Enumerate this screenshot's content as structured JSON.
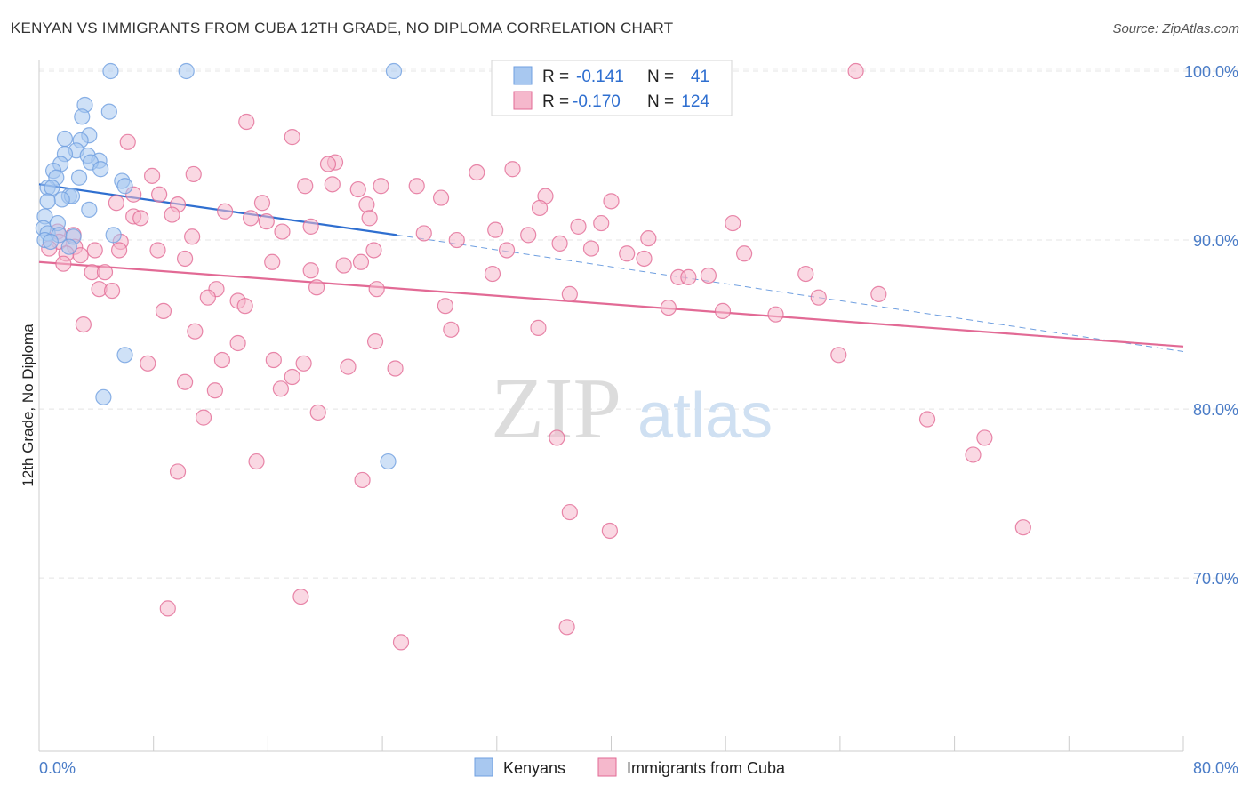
{
  "header": {
    "title": "KENYAN VS IMMIGRANTS FROM CUBA 12TH GRADE, NO DIPLOMA CORRELATION CHART",
    "source": "Source: ZipAtlas.com"
  },
  "watermark": {
    "zip": "ZIP",
    "atlas": "atlas"
  },
  "legend_top": [
    {
      "r_label": "R =",
      "r_value": "-0.141",
      "n_label": "N =",
      "n_value": "41",
      "color": "#a8c8f0"
    },
    {
      "r_label": "R =",
      "r_value": "-0.170",
      "n_label": "N =",
      "n_value": "124",
      "color": "#f5b8cc"
    }
  ],
  "legend_bottom": [
    {
      "label": "Kenyans",
      "color": "#a8c8f0"
    },
    {
      "label": "Immigrants from Cuba",
      "color": "#f5b8cc"
    }
  ],
  "chart_data": {
    "type": "scatter",
    "xlabel": "",
    "ylabel": "12th Grade, No Diploma",
    "xlim": [
      0,
      80
    ],
    "ylim": [
      60,
      103
    ],
    "x_tick_labels": [
      {
        "value": 0,
        "label": "0.0%"
      },
      {
        "value": 80,
        "label": "80.0%"
      }
    ],
    "y_tick_labels": [
      {
        "value": 100,
        "label": "100.0%"
      },
      {
        "value": 90,
        "label": "90.0%"
      },
      {
        "value": 80,
        "label": "80.0%"
      },
      {
        "value": 70,
        "label": "70.0%"
      }
    ],
    "grid": true,
    "legend_position": "top-center",
    "series": [
      {
        "name": "Kenyans",
        "color": "#6f9fe0",
        "fill": "#a8c8f0",
        "trend": {
          "x0": 0,
          "y0": 93.3,
          "x1": 25,
          "y1": 90.3,
          "dash_x1": 80,
          "dash_y1": 83.4
        },
        "points": [
          [
            5,
            100
          ],
          [
            10.3,
            100
          ],
          [
            24.8,
            100
          ],
          [
            3.2,
            98
          ],
          [
            4.9,
            97.6
          ],
          [
            3,
            97.3
          ],
          [
            3.5,
            96.2
          ],
          [
            1.8,
            96
          ],
          [
            2.9,
            95.9
          ],
          [
            2.6,
            95.3
          ],
          [
            1.8,
            95.1
          ],
          [
            3.4,
            95
          ],
          [
            4.2,
            94.7
          ],
          [
            3.6,
            94.6
          ],
          [
            1.5,
            94.5
          ],
          [
            1,
            94.1
          ],
          [
            4.3,
            94.2
          ],
          [
            2.8,
            93.7
          ],
          [
            1.2,
            93.7
          ],
          [
            5.8,
            93.5
          ],
          [
            0.6,
            93.1
          ],
          [
            0.9,
            93.1
          ],
          [
            6,
            93.2
          ],
          [
            2.1,
            92.6
          ],
          [
            2.3,
            92.6
          ],
          [
            1.6,
            92.4
          ],
          [
            0.6,
            92.3
          ],
          [
            3.5,
            91.8
          ],
          [
            0.4,
            91.4
          ],
          [
            1.3,
            91
          ],
          [
            0.3,
            90.7
          ],
          [
            0.6,
            90.4
          ],
          [
            1.4,
            90.3
          ],
          [
            2.4,
            90.2
          ],
          [
            0.4,
            90
          ],
          [
            0.8,
            89.9
          ],
          [
            5.2,
            90.3
          ],
          [
            2.1,
            89.6
          ],
          [
            6,
            83.2
          ],
          [
            4.5,
            80.7
          ],
          [
            24.4,
            76.9
          ]
        ]
      },
      {
        "name": "Immigrants from Cuba",
        "color": "#e26a95",
        "fill": "#f5b8cc",
        "trend": {
          "x0": 0,
          "y0": 88.7,
          "x1": 80,
          "y1": 83.7
        },
        "points": [
          [
            57.1,
            100
          ],
          [
            14.5,
            97
          ],
          [
            17.7,
            96.1
          ],
          [
            6.2,
            95.8
          ],
          [
            20.7,
            94.6
          ],
          [
            20.2,
            94.5
          ],
          [
            33.1,
            94.2
          ],
          [
            30.6,
            94
          ],
          [
            7.9,
            93.8
          ],
          [
            10.8,
            93.9
          ],
          [
            18.6,
            93.2
          ],
          [
            20.5,
            93.3
          ],
          [
            22.3,
            93
          ],
          [
            23.9,
            93.2
          ],
          [
            26.4,
            93.2
          ],
          [
            6.6,
            92.7
          ],
          [
            8.4,
            92.7
          ],
          [
            28.1,
            92.5
          ],
          [
            35.4,
            92.6
          ],
          [
            40,
            92.3
          ],
          [
            5.4,
            92.2
          ],
          [
            9.7,
            92.1
          ],
          [
            15.6,
            92.2
          ],
          [
            22.9,
            92.1
          ],
          [
            35,
            91.9
          ],
          [
            6.6,
            91.4
          ],
          [
            7.1,
            91.3
          ],
          [
            9.3,
            91.5
          ],
          [
            13,
            91.7
          ],
          [
            14.8,
            91.3
          ],
          [
            15.9,
            91.1
          ],
          [
            23.1,
            91.3
          ],
          [
            39.3,
            91
          ],
          [
            48.5,
            91
          ],
          [
            37.7,
            90.8
          ],
          [
            19,
            90.8
          ],
          [
            31.9,
            90.6
          ],
          [
            1.3,
            90.5
          ],
          [
            2.4,
            90.3
          ],
          [
            10.7,
            90.2
          ],
          [
            17,
            90.5
          ],
          [
            34.2,
            90.3
          ],
          [
            26.9,
            90.4
          ],
          [
            1.4,
            89.9
          ],
          [
            42.6,
            90.1
          ],
          [
            29.2,
            90
          ],
          [
            36.4,
            89.8
          ],
          [
            5.7,
            89.9
          ],
          [
            8.3,
            89.4
          ],
          [
            23.4,
            89.4
          ],
          [
            32.7,
            89.4
          ],
          [
            38.6,
            89.5
          ],
          [
            0.7,
            89.5
          ],
          [
            2.5,
            89.6
          ],
          [
            3.9,
            89.4
          ],
          [
            5.6,
            89.4
          ],
          [
            1.9,
            89.2
          ],
          [
            2.9,
            89.1
          ],
          [
            41.1,
            89.2
          ],
          [
            42.3,
            88.9
          ],
          [
            49.3,
            89.2
          ],
          [
            10.2,
            88.9
          ],
          [
            16.3,
            88.7
          ],
          [
            22.5,
            88.7
          ],
          [
            1.7,
            88.6
          ],
          [
            3.7,
            88.1
          ],
          [
            19,
            88.2
          ],
          [
            21.3,
            88.5
          ],
          [
            31.7,
            88
          ],
          [
            44.7,
            87.8
          ],
          [
            45.4,
            87.8
          ],
          [
            46.8,
            87.9
          ],
          [
            53.6,
            88
          ],
          [
            4.6,
            88.1
          ],
          [
            4.2,
            87.1
          ],
          [
            5.1,
            87
          ],
          [
            12.4,
            87.1
          ],
          [
            19.4,
            87.2
          ],
          [
            23.6,
            87.1
          ],
          [
            37.1,
            86.8
          ],
          [
            54.5,
            86.6
          ],
          [
            58.7,
            86.8
          ],
          [
            11.8,
            86.6
          ],
          [
            13.9,
            86.4
          ],
          [
            28.4,
            86.1
          ],
          [
            44,
            86
          ],
          [
            47.8,
            85.8
          ],
          [
            14.4,
            86.1
          ],
          [
            51.5,
            85.6
          ],
          [
            8.7,
            85.8
          ],
          [
            3.1,
            85
          ],
          [
            10.9,
            84.6
          ],
          [
            34.9,
            84.8
          ],
          [
            28.8,
            84.7
          ],
          [
            23.5,
            84
          ],
          [
            13.9,
            83.9
          ],
          [
            55.9,
            83.2
          ],
          [
            7.6,
            82.7
          ],
          [
            12.8,
            82.9
          ],
          [
            16.4,
            82.9
          ],
          [
            18.5,
            82.7
          ],
          [
            21.6,
            82.5
          ],
          [
            24.9,
            82.4
          ],
          [
            17.7,
            81.9
          ],
          [
            10.2,
            81.6
          ],
          [
            12.3,
            81.1
          ],
          [
            16.9,
            81.2
          ],
          [
            19.5,
            79.8
          ],
          [
            11.5,
            79.5
          ],
          [
            62.1,
            79.4
          ],
          [
            36.2,
            78.3
          ],
          [
            66.1,
            78.3
          ],
          [
            15.2,
            76.9
          ],
          [
            65.3,
            77.3
          ],
          [
            9.7,
            76.3
          ],
          [
            22.6,
            75.8
          ],
          [
            37.1,
            73.9
          ],
          [
            39.9,
            72.8
          ],
          [
            68.8,
            73
          ],
          [
            18.3,
            68.9
          ],
          [
            9,
            68.2
          ],
          [
            36.9,
            67.1
          ],
          [
            25.3,
            66.2
          ]
        ]
      }
    ]
  }
}
